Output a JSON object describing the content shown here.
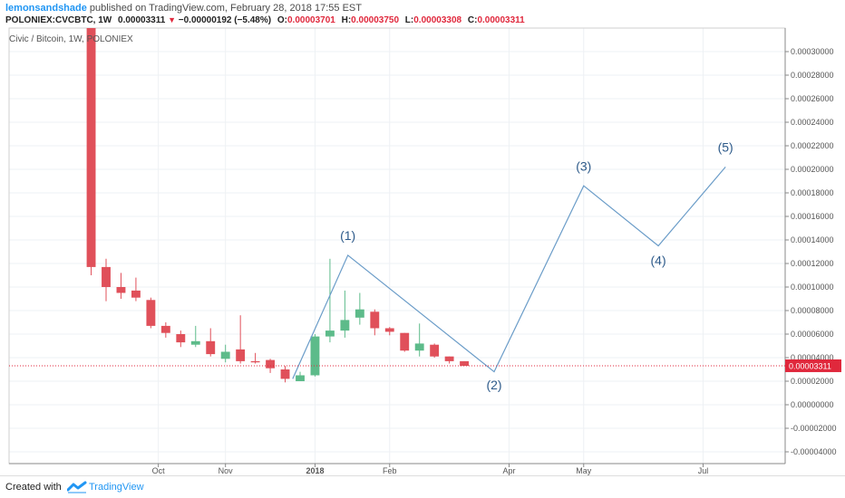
{
  "header": {
    "author": "lemonsandshade",
    "published": "published on TradingView.com, February 28, 2018 17:55 EST",
    "symbol_line": "POLONIEX:CVCBTC, 1W",
    "last": "0.00003311",
    "change": "−0.00000192 (−5.48%)",
    "open_label": "O:",
    "open": "0.00003701",
    "high_label": "H:",
    "high": "0.00003750",
    "low_label": "L:",
    "low": "0.00003308",
    "close_label": "C:",
    "close": "0.00003311"
  },
  "footer": {
    "created_with": "Created with",
    "brand": "TradingView"
  },
  "colors": {
    "up": "#5dbb8a",
    "down": "#e0505a",
    "wave": "#6a9cc8",
    "price_line": "#e0283c"
  },
  "chart_data": {
    "type": "candlestick",
    "title": "Civic / Bitcoin, 1W, POLONIEX",
    "y_unit": "BTC",
    "ylim": [
      -5e-05,
      0.00032
    ],
    "y_ticks": [
      "0.00030000",
      "0.00028000",
      "0.00026000",
      "0.00024000",
      "0.00022000",
      "0.00020000",
      "0.00018000",
      "0.00016000",
      "0.00014000",
      "0.00012000",
      "0.00010000",
      "0.00008000",
      "0.00006000",
      "0.00004000",
      "0.00002000",
      "0.00000000",
      "-0.00002000",
      "-0.00004000"
    ],
    "x_tick_labels": [
      "Oct",
      "Nov",
      "2018",
      "Feb",
      "Apr",
      "May",
      "Jul"
    ],
    "x_tick_weeks": [
      4.5,
      9,
      15,
      20,
      28,
      33,
      41
    ],
    "last_price_label": "0.00003311",
    "last_price": 3.311e-05,
    "grid": true,
    "candles": [
      {
        "w": 0,
        "o": 0.00032,
        "h": 0.00032,
        "l": 0.00011,
        "c": 0.000117
      },
      {
        "w": 1,
        "o": 0.000117,
        "h": 0.000124,
        "l": 8.8e-05,
        "c": 0.0001
      },
      {
        "w": 2,
        "o": 0.0001,
        "h": 0.000112,
        "l": 9e-05,
        "c": 9.5e-05
      },
      {
        "w": 3,
        "o": 9.7e-05,
        "h": 0.000108,
        "l": 8.8e-05,
        "c": 9.1e-05
      },
      {
        "w": 4,
        "o": 8.9e-05,
        "h": 9.1e-05,
        "l": 6.5e-05,
        "c": 6.7e-05
      },
      {
        "w": 5,
        "o": 6.7e-05,
        "h": 7e-05,
        "l": 5.7e-05,
        "c": 6.1e-05
      },
      {
        "w": 6,
        "o": 6e-05,
        "h": 6.3e-05,
        "l": 4.9e-05,
        "c": 5.3e-05
      },
      {
        "w": 7,
        "o": 5.1e-05,
        "h": 6.7e-05,
        "l": 4.9e-05,
        "c": 5.4e-05
      },
      {
        "w": 8,
        "o": 5.4e-05,
        "h": 6.5e-05,
        "l": 4.1e-05,
        "c": 4.3e-05
      },
      {
        "w": 9,
        "o": 3.9e-05,
        "h": 5.1e-05,
        "l": 3.6e-05,
        "c": 4.5e-05
      },
      {
        "w": 10,
        "o": 4.7e-05,
        "h": 7.6e-05,
        "l": 3.5e-05,
        "c": 3.7e-05
      },
      {
        "w": 11,
        "o": 3.7e-05,
        "h": 4.4e-05,
        "l": 3.5e-05,
        "c": 3.6e-05
      },
      {
        "w": 12,
        "o": 3.8e-05,
        "h": 3.9e-05,
        "l": 2.7e-05,
        "c": 3.1e-05
      },
      {
        "w": 13,
        "o": 3e-05,
        "h": 3.3e-05,
        "l": 1.9e-05,
        "c": 2.2e-05
      },
      {
        "w": 14,
        "o": 2e-05,
        "h": 2.8e-05,
        "l": 2e-05,
        "c": 2.5e-05
      },
      {
        "w": 15,
        "o": 2.5e-05,
        "h": 6e-05,
        "l": 2.4e-05,
        "c": 5.8e-05
      },
      {
        "w": 16,
        "o": 5.8e-05,
        "h": 0.000124,
        "l": 5.3e-05,
        "c": 6.3e-05
      },
      {
        "w": 17,
        "o": 6.3e-05,
        "h": 9.7e-05,
        "l": 5.7e-05,
        "c": 7.2e-05
      },
      {
        "w": 18,
        "o": 7.4e-05,
        "h": 9.5e-05,
        "l": 6.8e-05,
        "c": 8.1e-05
      },
      {
        "w": 19,
        "o": 7.9e-05,
        "h": 8.1e-05,
        "l": 5.9e-05,
        "c": 6.5e-05
      },
      {
        "w": 20,
        "o": 6.5e-05,
        "h": 6.6e-05,
        "l": 5.9e-05,
        "c": 6.2e-05
      },
      {
        "w": 21,
        "o": 6.1e-05,
        "h": 6.1e-05,
        "l": 4.5e-05,
        "c": 4.6e-05
      },
      {
        "w": 22,
        "o": 4.6e-05,
        "h": 6.9e-05,
        "l": 4.1e-05,
        "c": 5.2e-05
      },
      {
        "w": 23,
        "o": 5.1e-05,
        "h": 5.2e-05,
        "l": 4e-05,
        "c": 4.1e-05
      },
      {
        "w": 24,
        "o": 4.1e-05,
        "h": 4.1e-05,
        "l": 3.5e-05,
        "c": 3.7e-05
      },
      {
        "w": 25,
        "o": 3.7e-05,
        "h": 3.7e-05,
        "l": 3.3e-05,
        "c": 3.3e-05
      }
    ],
    "wave_path": [
      {
        "w": 13.5,
        "y": 2.2e-05
      },
      {
        "w": 17.2,
        "y": 0.000127
      },
      {
        "w": 27.0,
        "y": 2.8e-05
      },
      {
        "w": 33.0,
        "y": 0.000186
      },
      {
        "w": 38.0,
        "y": 0.000135
      },
      {
        "w": 42.5,
        "y": 0.000202
      }
    ],
    "wave_labels": [
      {
        "text": "(1)",
        "w": 17.2,
        "y": 0.00014
      },
      {
        "text": "(2)",
        "w": 27.0,
        "y": 1.3e-05
      },
      {
        "text": "(3)",
        "w": 33.0,
        "y": 0.000199
      },
      {
        "text": "(4)",
        "w": 38.0,
        "y": 0.000119
      },
      {
        "text": "(5)",
        "w": 42.5,
        "y": 0.000215
      }
    ]
  }
}
